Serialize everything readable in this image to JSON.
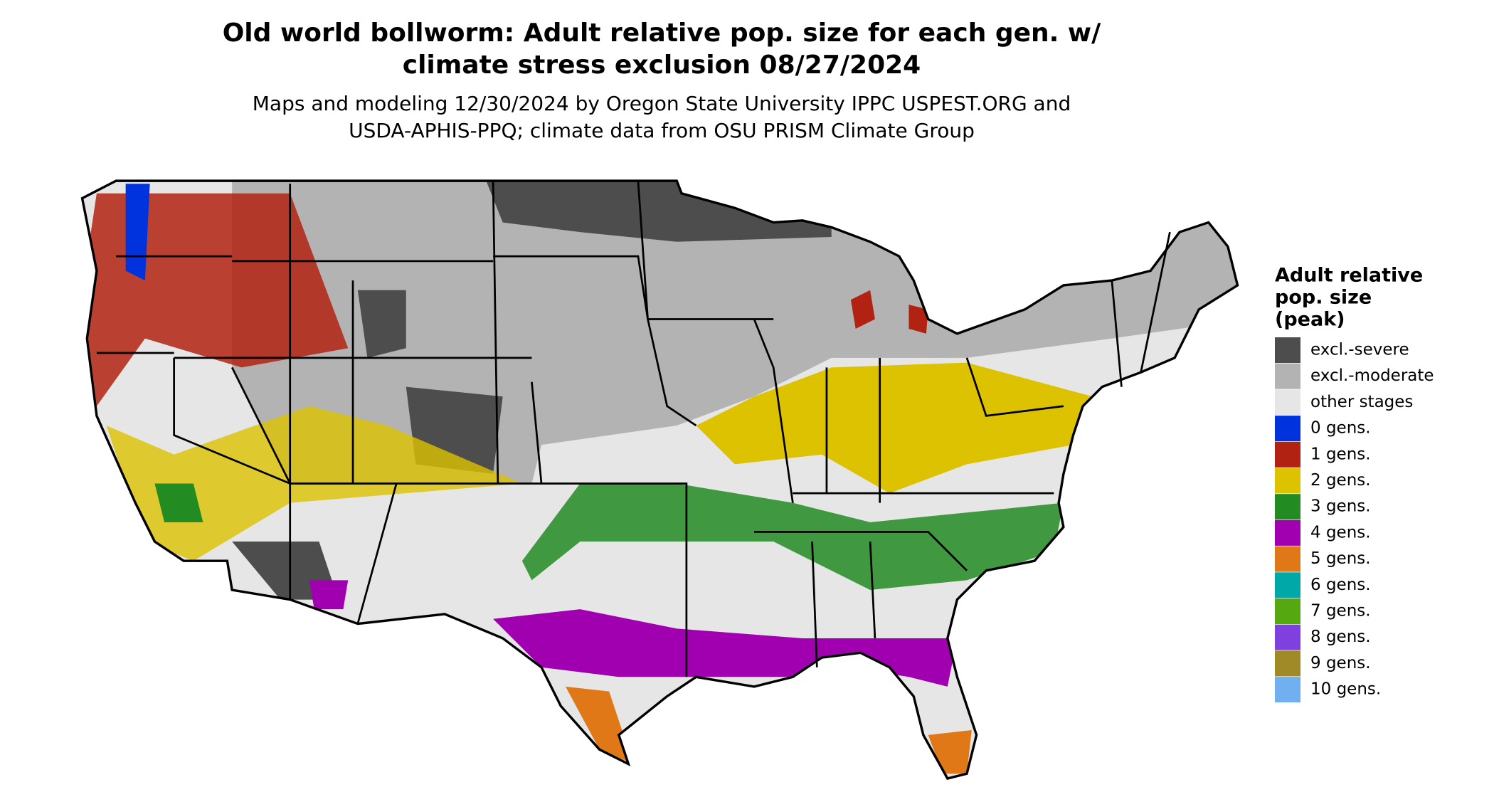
{
  "title": {
    "lines": [
      "Old world bollworm: Adult relative pop. size for each gen. w/",
      "climate stress exclusion 08/27/2024"
    ]
  },
  "subtitle": {
    "lines": [
      "Maps and modeling 12/30/2024 by Oregon State University IPPC USPEST.ORG and",
      "USDA-APHIS-PPQ; climate data from OSU PRISM Climate Group"
    ]
  },
  "legend": {
    "title": [
      "Adult relative",
      "pop. size",
      "(peak)"
    ],
    "items": [
      {
        "label": "excl.-severe",
        "color": "#4d4d4d"
      },
      {
        "label": "excl.-moderate",
        "color": "#b3b3b3"
      },
      {
        "label": "other stages",
        "color": "#e6e6e6"
      },
      {
        "label": "0 gens.",
        "color": "#0033dd"
      },
      {
        "label": "1 gens.",
        "color": "#b22212"
      },
      {
        "label": "2 gens.",
        "color": "#dcc200"
      },
      {
        "label": "3 gens.",
        "color": "#228b22"
      },
      {
        "label": "4 gens.",
        "color": "#a000b0"
      },
      {
        "label": "5 gens.",
        "color": "#e07818"
      },
      {
        "label": "6 gens.",
        "color": "#00a8a8"
      },
      {
        "label": "7 gens.",
        "color": "#55a810"
      },
      {
        "label": "8 gens.",
        "color": "#8040e0"
      },
      {
        "label": "9 gens.",
        "color": "#a08a28"
      },
      {
        "label": "10 gens.",
        "color": "#70b0f0"
      }
    ]
  }
}
